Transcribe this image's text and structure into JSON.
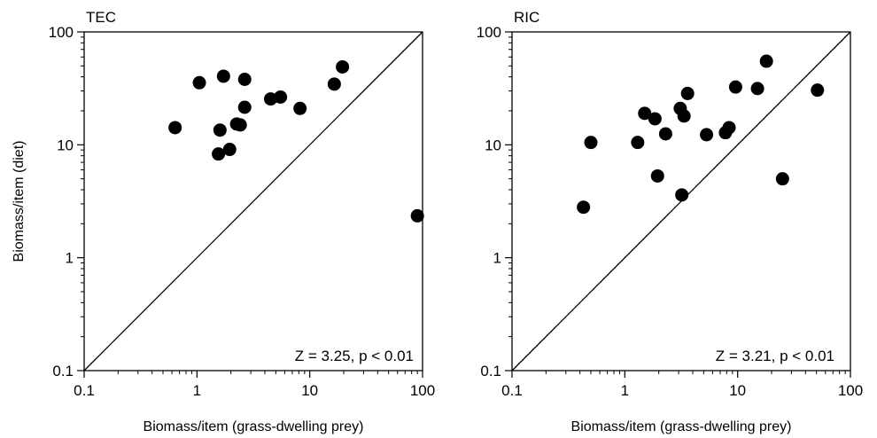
{
  "chart_data": [
    {
      "type": "scatter",
      "panel_label": "TEC",
      "xlabel": "Biomass/item (grass-dwelling prey)",
      "ylabel": "Biomass/item (diet)",
      "xscale": "log",
      "yscale": "log",
      "xlim": [
        0.1,
        100
      ],
      "ylim": [
        0.1,
        100
      ],
      "xticks": [
        "0.1",
        "1",
        "10",
        "100"
      ],
      "yticks": [
        "0.1",
        "1",
        "10",
        "100"
      ],
      "reference_line": "1:1",
      "annotation": "Z = 3.25, p < 0.01",
      "marker_color": "#000000",
      "points": [
        {
          "x": 0.64,
          "y": 14.2
        },
        {
          "x": 1.05,
          "y": 35.5
        },
        {
          "x": 1.55,
          "y": 8.3
        },
        {
          "x": 1.6,
          "y": 13.5
        },
        {
          "x": 1.72,
          "y": 40.5
        },
        {
          "x": 1.95,
          "y": 9.1
        },
        {
          "x": 2.25,
          "y": 15.3
        },
        {
          "x": 2.42,
          "y": 15.0
        },
        {
          "x": 2.65,
          "y": 21.5
        },
        {
          "x": 2.65,
          "y": 38.0
        },
        {
          "x": 4.5,
          "y": 25.5
        },
        {
          "x": 5.5,
          "y": 26.5
        },
        {
          "x": 8.2,
          "y": 21.0
        },
        {
          "x": 16.5,
          "y": 34.5
        },
        {
          "x": 19.5,
          "y": 49.0
        },
        {
          "x": 90,
          "y": 2.35
        }
      ]
    },
    {
      "type": "scatter",
      "panel_label": "RIC",
      "xlabel": "Biomass/item (grass-dwelling prey)",
      "ylabel": "",
      "xscale": "log",
      "yscale": "log",
      "xlim": [
        0.1,
        100
      ],
      "ylim": [
        0.1,
        100
      ],
      "xticks": [
        "0.1",
        "1",
        "10",
        "100"
      ],
      "yticks": [
        "0.1",
        "1",
        "10",
        "100"
      ],
      "reference_line": "1:1",
      "annotation": "Z = 3.21, p < 0.01",
      "marker_color": "#000000",
      "points": [
        {
          "x": 0.43,
          "y": 2.8
        },
        {
          "x": 0.5,
          "y": 10.5
        },
        {
          "x": 1.3,
          "y": 10.5
        },
        {
          "x": 1.5,
          "y": 19.0
        },
        {
          "x": 1.85,
          "y": 17.0
        },
        {
          "x": 1.95,
          "y": 5.3
        },
        {
          "x": 2.3,
          "y": 12.5
        },
        {
          "x": 3.1,
          "y": 21.0
        },
        {
          "x": 3.2,
          "y": 3.6
        },
        {
          "x": 3.35,
          "y": 18.0
        },
        {
          "x": 3.6,
          "y": 28.5
        },
        {
          "x": 5.3,
          "y": 12.3
        },
        {
          "x": 7.8,
          "y": 12.8
        },
        {
          "x": 8.4,
          "y": 14.2
        },
        {
          "x": 9.6,
          "y": 32.5
        },
        {
          "x": 15.0,
          "y": 31.5
        },
        {
          "x": 18.0,
          "y": 55.0
        },
        {
          "x": 25.0,
          "y": 5.0
        },
        {
          "x": 51.0,
          "y": 30.5
        }
      ]
    }
  ]
}
